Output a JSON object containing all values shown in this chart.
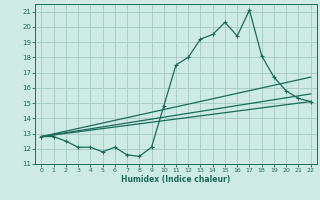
{
  "bg_color": "#ceeae4",
  "grid_color": "#aacfc8",
  "line_color": "#1a6b5a",
  "xlabel": "Humidex (Indice chaleur)",
  "xlim": [
    -0.5,
    22.5
  ],
  "ylim": [
    11,
    21.5
  ],
  "yticks": [
    11,
    12,
    13,
    14,
    15,
    16,
    17,
    18,
    19,
    20,
    21
  ],
  "xticks": [
    0,
    1,
    2,
    3,
    4,
    5,
    6,
    7,
    8,
    9,
    10,
    11,
    12,
    13,
    14,
    15,
    16,
    17,
    18,
    19,
    20,
    21,
    22
  ],
  "main_x": [
    0,
    1,
    2,
    3,
    4,
    5,
    6,
    7,
    8,
    9,
    10,
    11,
    12,
    13,
    14,
    15,
    16,
    17,
    18,
    19,
    20,
    21,
    22
  ],
  "main_y": [
    12.8,
    12.8,
    12.5,
    12.1,
    12.1,
    11.8,
    12.1,
    11.6,
    11.5,
    12.1,
    14.8,
    17.5,
    18.0,
    19.2,
    19.5,
    20.3,
    19.4,
    21.1,
    18.1,
    16.7,
    15.8,
    15.3,
    15.1
  ],
  "line1_x": [
    0,
    22
  ],
  "line1_y": [
    12.8,
    16.7
  ],
  "line2_x": [
    0,
    22
  ],
  "line2_y": [
    12.8,
    15.6
  ],
  "line3_x": [
    0,
    22
  ],
  "line3_y": [
    12.8,
    15.1
  ]
}
